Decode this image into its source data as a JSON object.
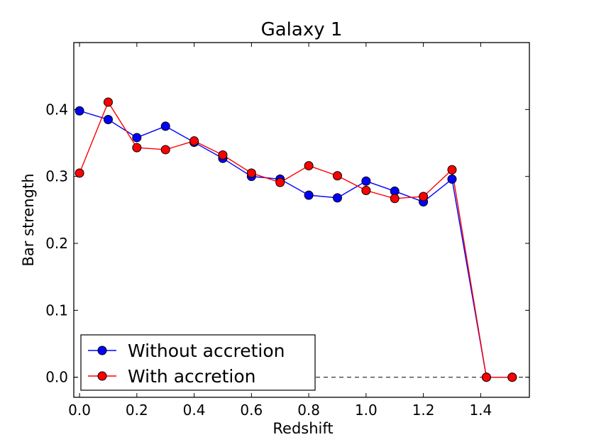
{
  "chart_data": {
    "type": "line",
    "title": "Galaxy 1",
    "xlabel": "Redshift",
    "ylabel": "Bar strength",
    "xlim": [
      -0.02,
      1.57
    ],
    "ylim": [
      -0.03,
      0.5
    ],
    "xticks": [
      0.0,
      0.2,
      0.4,
      0.6,
      0.8,
      1.0,
      1.2,
      1.4
    ],
    "xtick_labels": [
      "0.0",
      "0.2",
      "0.4",
      "0.6",
      "0.8",
      "1.0",
      "1.2",
      "1.4"
    ],
    "yticks": [
      0.0,
      0.1,
      0.2,
      0.3,
      0.4
    ],
    "ytick_labels": [
      "0.0",
      "0.1",
      "0.2",
      "0.3",
      "0.4"
    ],
    "reference_line": {
      "y": 0.0,
      "style": "dashed",
      "color": "#000000"
    },
    "legend": {
      "placement": "bottom-left"
    },
    "series": [
      {
        "name": "Without accretion",
        "color": "#0000ff",
        "x": [
          0.0,
          0.1,
          0.2,
          0.3,
          0.4,
          0.5,
          0.6,
          0.7,
          0.8,
          0.9,
          1.0,
          1.1,
          1.2,
          1.3,
          1.42,
          1.51
        ],
        "y": [
          0.398,
          0.385,
          0.358,
          0.375,
          0.351,
          0.327,
          0.3,
          0.296,
          0.272,
          0.268,
          0.293,
          0.278,
          0.262,
          0.296,
          0.0,
          0.0
        ]
      },
      {
        "name": "With accretion",
        "color": "#ff0000",
        "x": [
          0.0,
          0.1,
          0.2,
          0.3,
          0.4,
          0.5,
          0.6,
          0.7,
          0.8,
          0.9,
          1.0,
          1.1,
          1.2,
          1.3,
          1.42,
          1.51
        ],
        "y": [
          0.305,
          0.411,
          0.343,
          0.34,
          0.353,
          0.332,
          0.305,
          0.291,
          0.316,
          0.301,
          0.279,
          0.267,
          0.27,
          0.31,
          0.0,
          0.0
        ]
      }
    ]
  }
}
